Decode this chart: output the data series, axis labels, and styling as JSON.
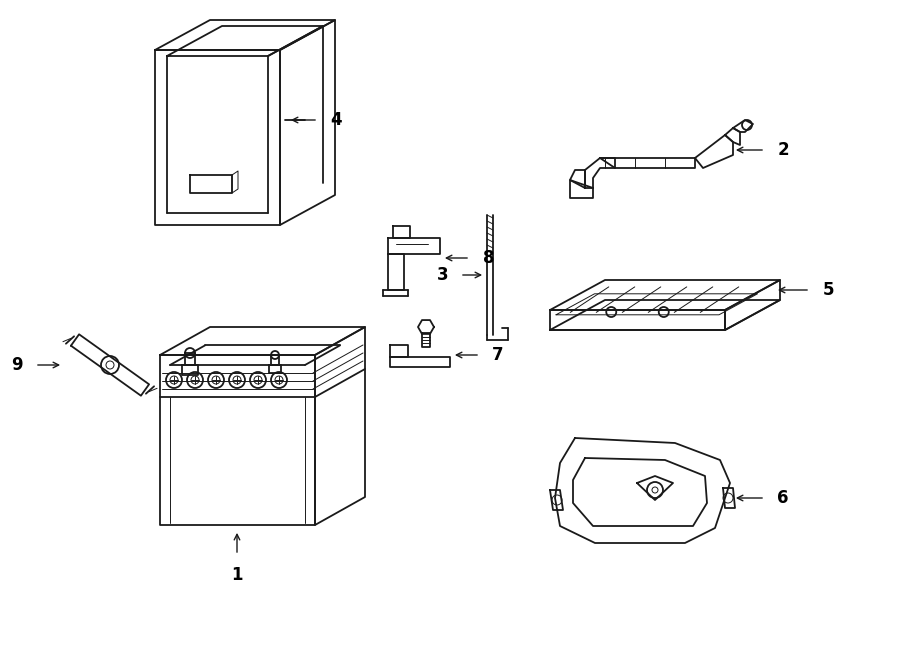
{
  "background_color": "#ffffff",
  "line_color": "#1a1a1a",
  "lw": 1.3,
  "lw_thick": 2.0,
  "lw_thin": 0.7
}
